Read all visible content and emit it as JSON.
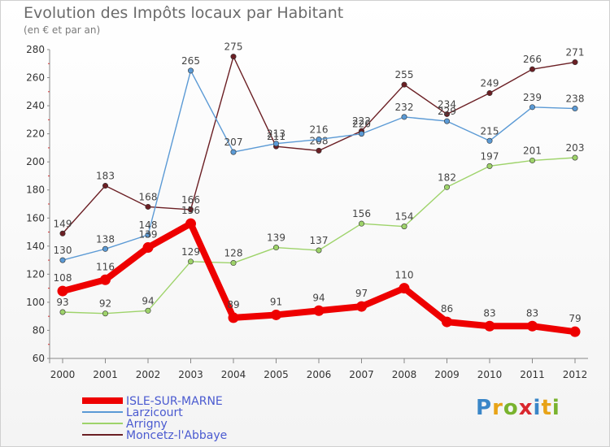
{
  "title": "Evolution des Impôts locaux par Habitant",
  "subtitle": "(en € et par an)",
  "logo": {
    "letters": [
      "P",
      "r",
      "o",
      "x",
      "i",
      "t",
      "i"
    ],
    "colors": [
      "#3a86c8",
      "#e8a317",
      "#79b32e",
      "#d9272e",
      "#3a86c8",
      "#e8a317",
      "#79b32e"
    ]
  },
  "chart_data": {
    "type": "line",
    "title": "Evolution des Impôts locaux par Habitant",
    "subtitle": "(en € et par an)",
    "x": [
      "2000",
      "2001",
      "2002",
      "2003",
      "2004",
      "2005",
      "2006",
      "2007",
      "2008",
      "2009",
      "2010",
      "2011",
      "2012"
    ],
    "ylim": [
      60,
      280
    ],
    "yticks": [
      60,
      80,
      100,
      120,
      140,
      160,
      180,
      200,
      220,
      240,
      260,
      280
    ],
    "grid": false,
    "legend_position": "bottom-left",
    "series": [
      {
        "name": "Moncetz-l'Abbaye",
        "color": "#6b1f24",
        "values": [
          149,
          183,
          168,
          166,
          275,
          211,
          208,
          222,
          255,
          234,
          249,
          266,
          271
        ],
        "labels": [
          "149",
          "183",
          "168",
          "166",
          "275",
          "211",
          "208",
          "222",
          "255",
          "234",
          "249",
          "266",
          "271"
        ]
      },
      {
        "name": "Larzicourt",
        "color": "#5b9ad5",
        "values": [
          130,
          138,
          148,
          265,
          207,
          213,
          216,
          220,
          232,
          229,
          215,
          239,
          238
        ],
        "labels": [
          "130",
          "138",
          "148",
          "265",
          "207",
          "213",
          "216",
          "220",
          "232",
          "229",
          "215",
          "239",
          "238"
        ]
      },
      {
        "name": "Arrigny",
        "color": "#9ed36a",
        "values": [
          93,
          92,
          94,
          129,
          128,
          139,
          137,
          156,
          154,
          182,
          197,
          201,
          203
        ],
        "labels": [
          "93",
          "92",
          "94",
          "129",
          "128",
          "139",
          "137",
          "156",
          "154",
          "182",
          "197",
          "201",
          "203"
        ]
      },
      {
        "name": "ISLE-SUR-MARNE",
        "color": "#ee0000",
        "values": [
          108,
          116,
          139,
          156,
          89,
          91,
          94,
          97,
          110,
          86,
          83,
          83,
          79
        ],
        "labels": [
          "108",
          "116",
          "139",
          "156",
          "89",
          "91",
          "94",
          "97",
          "110",
          "86",
          "83",
          "83",
          "79"
        ]
      }
    ],
    "legend_order": [
      "ISLE-SUR-MARNE",
      "Larzicourt",
      "Arrigny",
      "Moncetz-l'Abbaye"
    ]
  }
}
